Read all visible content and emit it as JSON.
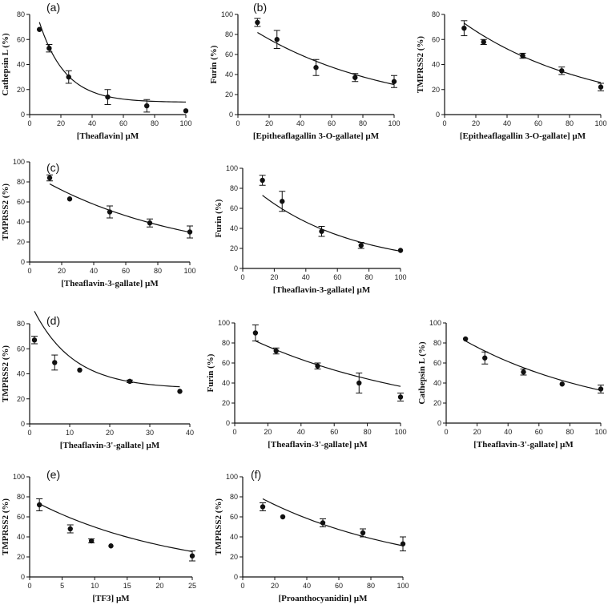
{
  "figure": {
    "background": "#ffffff",
    "line_color": "#111111",
    "point_color": "#111111"
  },
  "chart_data": [
    {
      "id": "a1",
      "type": "scatter",
      "panel_letter": "(a)",
      "xlabel": "[Theaflavin] µM",
      "ylabel": "Cathepsin L (%)",
      "xlim": [
        0,
        100
      ],
      "ylim": [
        0,
        80
      ],
      "xticks": [
        0,
        20,
        40,
        60,
        80,
        100
      ],
      "yticks": [
        0,
        20,
        40,
        60,
        80
      ],
      "x": [
        6.25,
        12.5,
        25,
        50,
        75,
        100
      ],
      "y": [
        68,
        53,
        30,
        14,
        7,
        3
      ],
      "err": [
        0,
        3,
        5,
        6,
        5,
        0
      ],
      "fit": {
        "a": 64,
        "b": 0.06,
        "c": 9.8,
        "x_start": 6.25,
        "x_end": 100
      }
    },
    {
      "id": "b1",
      "type": "scatter",
      "panel_letter": "(b)",
      "xlabel": "[Epitheaflagallin 3-O-gallate] µM",
      "ylabel": "Furin (%)",
      "xlim": [
        0,
        100
      ],
      "ylim": [
        0,
        100
      ],
      "xticks": [
        0,
        20,
        40,
        60,
        80,
        100
      ],
      "yticks": [
        0,
        20,
        40,
        60,
        80,
        100
      ],
      "x": [
        12.5,
        25,
        50,
        75,
        100
      ],
      "y": [
        92,
        75,
        47,
        37,
        33
      ],
      "err": [
        4,
        9,
        8,
        4,
        6
      ],
      "fit": {
        "a": 82,
        "b": 0.0115,
        "c": 0,
        "x_start": 12.5,
        "x_end": 100
      }
    },
    {
      "id": "b2",
      "type": "scatter",
      "panel_letter": "",
      "xlabel": "[Epitheaflagallin 3-O-gallate] µM",
      "ylabel": "TMPRSS2 (%)",
      "xlim": [
        0,
        100
      ],
      "ylim": [
        0,
        80
      ],
      "xticks": [
        0,
        20,
        40,
        60,
        80,
        100
      ],
      "yticks": [
        0,
        20,
        40,
        60,
        80
      ],
      "x": [
        12.5,
        25,
        50,
        75,
        100
      ],
      "y": [
        69,
        58,
        47,
        35,
        22
      ],
      "err": [
        6,
        2,
        2,
        3,
        3
      ],
      "fit": {
        "a": 73,
        "b": 0.012,
        "c": 0,
        "x_start": 12.5,
        "x_end": 100
      }
    },
    {
      "id": "c1",
      "type": "scatter",
      "panel_letter": "(c)",
      "xlabel": "[Theaflavin-3-gallate] µM",
      "ylabel": "TMPRSS2 (%)",
      "xlim": [
        0,
        100
      ],
      "ylim": [
        0,
        100
      ],
      "xticks": [
        0,
        20,
        40,
        60,
        80,
        100
      ],
      "yticks": [
        0,
        20,
        40,
        60,
        80,
        100
      ],
      "x": [
        12.5,
        25,
        50,
        75,
        100
      ],
      "y": [
        84,
        63,
        50,
        39,
        30
      ],
      "err": [
        3,
        0,
        6,
        4,
        6
      ],
      "fit": {
        "a": 78,
        "b": 0.011,
        "c": 0,
        "x_start": 12.5,
        "x_end": 100
      }
    },
    {
      "id": "c2",
      "type": "scatter",
      "panel_letter": "",
      "xlabel": "[Theaflavin-3-gallate] µM",
      "ylabel": "Furin (%)",
      "xlim": [
        0,
        100
      ],
      "ylim": [
        0,
        100
      ],
      "xticks": [
        0,
        20,
        40,
        60,
        80,
        100
      ],
      "yticks": [
        0,
        20,
        40,
        60,
        80,
        100
      ],
      "x": [
        12.5,
        25,
        50,
        75,
        100
      ],
      "y": [
        88,
        67,
        37,
        23,
        18
      ],
      "err": [
        5,
        10,
        5,
        3,
        0
      ],
      "fit": {
        "a": 73,
        "b": 0.0165,
        "c": 0,
        "x_start": 12.5,
        "x_end": 100
      }
    },
    {
      "id": "d1",
      "type": "scatter",
      "panel_letter": "(d)",
      "xlabel": "[Theaflavin-3'-gallate] µM",
      "ylabel": "TMPRSS2 (%)",
      "xlim": [
        0,
        40
      ],
      "ylim": [
        0,
        80
      ],
      "xticks": [
        0,
        10,
        20,
        30,
        40
      ],
      "yticks": [
        0,
        20,
        40,
        60,
        80
      ],
      "x": [
        1.2,
        6.25,
        12.5,
        25,
        37.5
      ],
      "y": [
        67,
        49,
        43,
        34,
        26
      ],
      "err": [
        3,
        6,
        0,
        1,
        0
      ],
      "fit": {
        "a": 62,
        "b": 0.1,
        "c": 28,
        "x_start": 1.2,
        "x_end": 37.5
      }
    },
    {
      "id": "d2",
      "type": "scatter",
      "panel_letter": "",
      "xlabel": "[Theaflavin-3'-gallate] µM",
      "ylabel": "Furin (%)",
      "xlim": [
        0,
        100
      ],
      "ylim": [
        0,
        100
      ],
      "xticks": [
        0,
        20,
        40,
        60,
        80,
        100
      ],
      "yticks": [
        0,
        20,
        40,
        60,
        80,
        100
      ],
      "x": [
        12.5,
        25,
        50,
        75,
        100
      ],
      "y": [
        90,
        72,
        57,
        40,
        26
      ],
      "err": [
        8,
        3,
        3,
        10,
        4
      ],
      "fit": {
        "a": 82,
        "b": 0.0092,
        "c": 0,
        "x_start": 12.5,
        "x_end": 100
      }
    },
    {
      "id": "d3",
      "type": "scatter",
      "panel_letter": "",
      "xlabel": "[Theaflavin-3'-gallate] µM",
      "ylabel": "Cathepsin L (%)",
      "xlim": [
        0,
        100
      ],
      "ylim": [
        0,
        100
      ],
      "xticks": [
        0,
        20,
        40,
        60,
        80,
        100
      ],
      "yticks": [
        0,
        20,
        40,
        60,
        80,
        100
      ],
      "x": [
        12.5,
        25,
        50,
        75,
        100
      ],
      "y": [
        84,
        65,
        51,
        39,
        34
      ],
      "err": [
        0,
        6,
        3,
        0,
        4
      ],
      "fit": {
        "a": 82,
        "b": 0.0105,
        "c": 0,
        "x_start": 12.5,
        "x_end": 100
      }
    },
    {
      "id": "e1",
      "type": "scatter",
      "panel_letter": "(e)",
      "xlabel": "[TF3] µM",
      "ylabel": "TMPRSS2 (%)",
      "xlim": [
        0,
        25
      ],
      "ylim": [
        0,
        100
      ],
      "xticks": [
        0,
        5,
        10,
        15,
        20,
        25
      ],
      "yticks": [
        0,
        20,
        40,
        60,
        80,
        100
      ],
      "x": [
        1.5,
        6.25,
        9.5,
        12.5,
        25
      ],
      "y": [
        72,
        48,
        36,
        31,
        21
      ],
      "err": [
        6,
        4,
        2,
        0,
        5
      ],
      "fit": {
        "a": 73,
        "b": 0.045,
        "c": 0,
        "x_start": 1.5,
        "x_end": 25
      }
    },
    {
      "id": "f1",
      "type": "scatter",
      "panel_letter": "(f)",
      "xlabel": "[Proanthocyanidin] µM",
      "ylabel": "TMPRSS2 (%)",
      "xlim": [
        0,
        100
      ],
      "ylim": [
        0,
        100
      ],
      "xticks": [
        0,
        20,
        40,
        60,
        80,
        100
      ],
      "yticks": [
        0,
        20,
        40,
        60,
        80,
        100
      ],
      "x": [
        12.5,
        25,
        50,
        75,
        100
      ],
      "y": [
        70,
        60,
        54,
        44,
        33
      ],
      "err": [
        4,
        0,
        4,
        4,
        7
      ],
      "fit": {
        "a": 78,
        "b": 0.0105,
        "c": 0,
        "x_start": 12.5,
        "x_end": 100
      }
    }
  ]
}
